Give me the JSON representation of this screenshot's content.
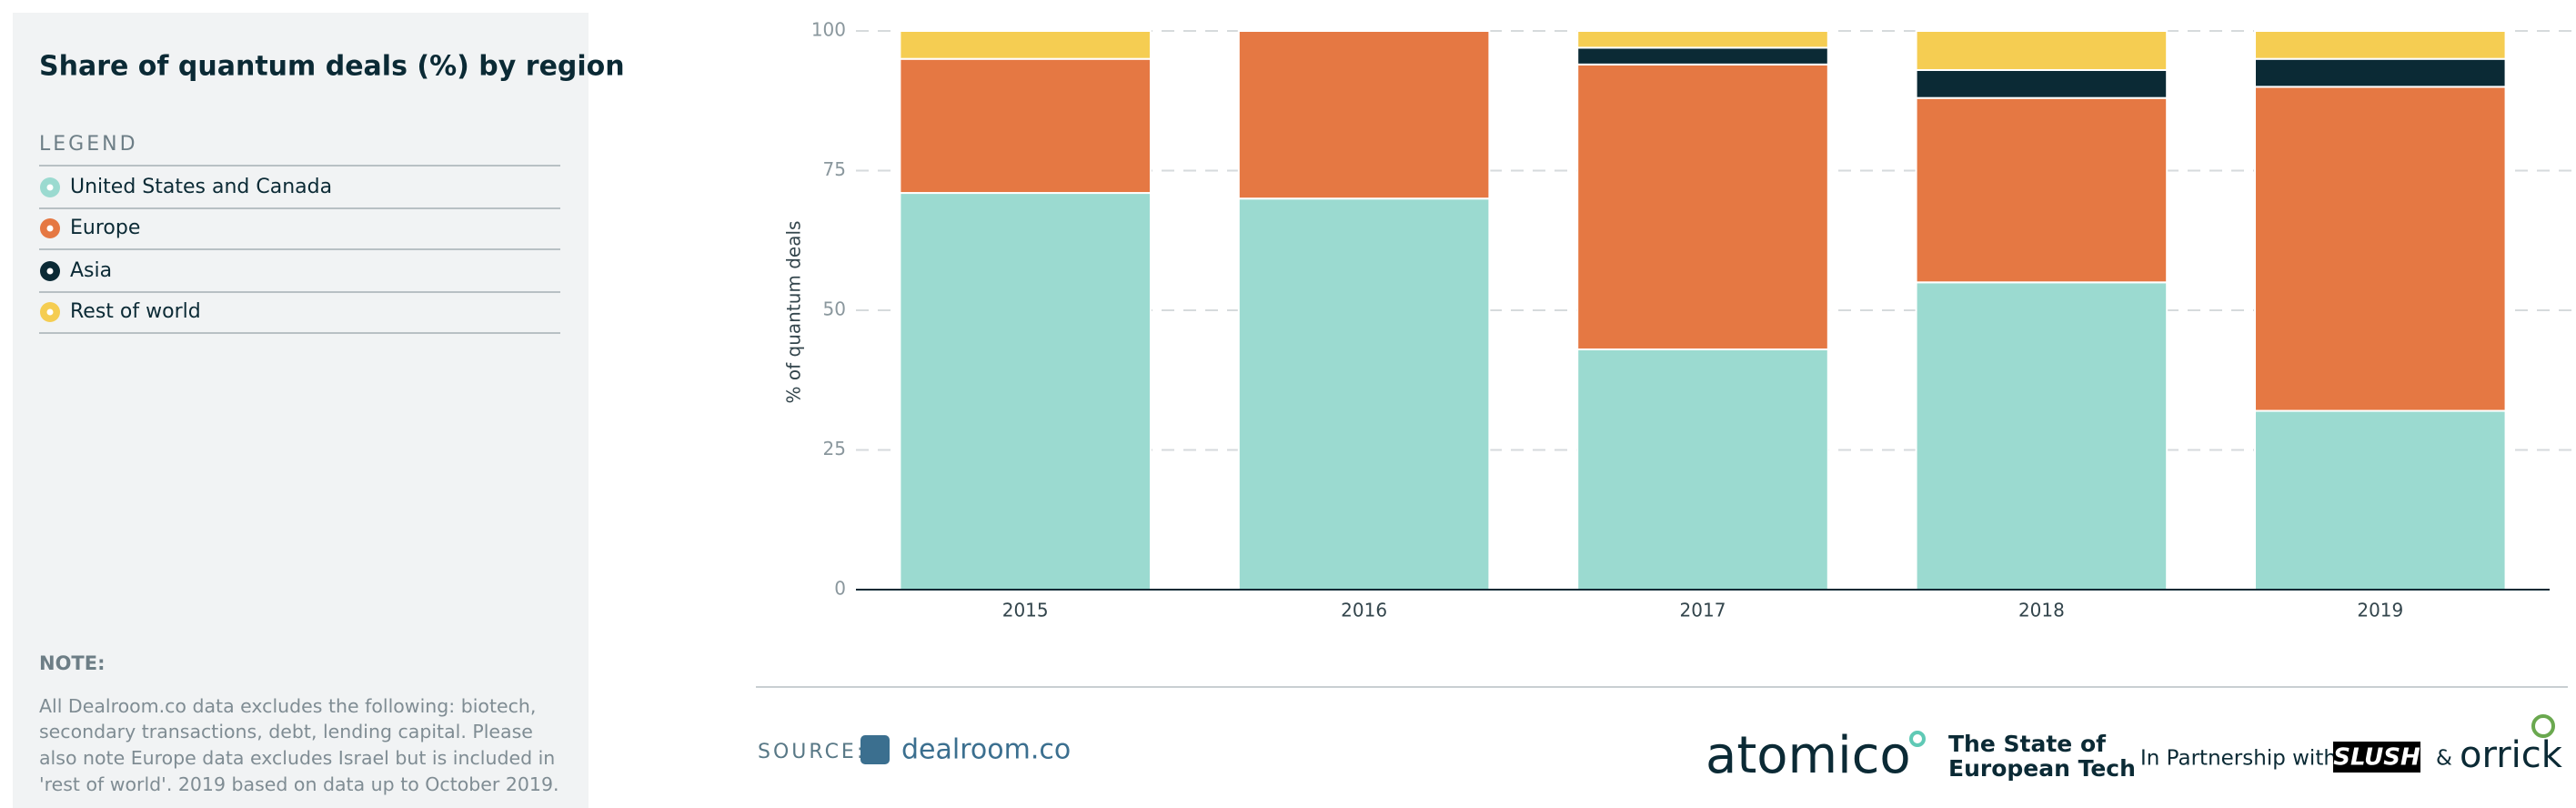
{
  "chart_data": {
    "type": "stacked-bar",
    "title": "Share of quantum deals (%) by region",
    "legend_title": "LEGEND",
    "ylabel": "% of quantum deals",
    "categories": [
      "2015",
      "2016",
      "2017",
      "2018",
      "2019"
    ],
    "series": [
      {
        "name": "United States and Canada",
        "color": "#9bdad0",
        "values": [
          71,
          70,
          43,
          55,
          32
        ]
      },
      {
        "name": "Europe",
        "color": "#e57843",
        "values": [
          24,
          30,
          51,
          33,
          58
        ]
      },
      {
        "name": "Asia",
        "color": "#0b2a35",
        "values": [
          0,
          0,
          3,
          5,
          5
        ]
      },
      {
        "name": "Rest of world",
        "color": "#f5cd52",
        "values": [
          5,
          0,
          3,
          7,
          5
        ]
      }
    ],
    "ylim": [
      0,
      100
    ],
    "yticks": [
      0,
      25,
      50,
      75,
      100
    ],
    "grid": true,
    "note_title": "NOTE:",
    "note": [
      "All Dealroom.co data excludes the following: biotech,",
      "secondary transactions, debt, lending capital. Please",
      "also note Europe data excludes Israel but is included in",
      "'rest of world'. 2019 based on data up to October 2019."
    ]
  },
  "footer": {
    "source_label": "SOURCE:",
    "source": "dealroom.co",
    "brand": "atomico",
    "report": [
      "The State of",
      "European Tech"
    ],
    "partnership": "In Partnership with",
    "partner1": "SLUSH",
    "amp": "&",
    "partner2": "orrick"
  }
}
